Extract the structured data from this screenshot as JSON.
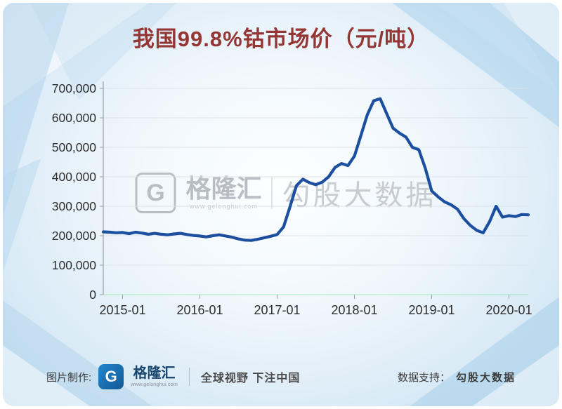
{
  "title": "我国99.8%钴市场价（元/吨）",
  "colors": {
    "line": "#1c4f9f",
    "title": "#943634",
    "background_panel": "#d9eaf6"
  },
  "watermark": {
    "logo_letter": "G",
    "brand": "格隆汇",
    "brand_url": "www.gelonghui.com",
    "right_text": "勾股大数据"
  },
  "footer": {
    "left_label": "图片制作:",
    "logo_letter": "G",
    "brand": "格隆汇",
    "brand_url": "www.gelonghui.com",
    "slogan": "全球视野 下注中国",
    "right_label": "数据支持：",
    "right_value": "勾股大数据"
  },
  "chart_data": {
    "type": "line",
    "title": "我国99.8%钴市场价（元/吨）",
    "xlabel": "",
    "ylabel": "元/吨",
    "ylim": [
      0,
      700000
    ],
    "grid": "horizontal",
    "legend_position": "none",
    "x_unit": "months, offset relative to 2015-01",
    "x_ticks": [
      {
        "label": "2015-01",
        "m": 0
      },
      {
        "label": "2016-01",
        "m": 12
      },
      {
        "label": "2017-01",
        "m": 24
      },
      {
        "label": "2018-01",
        "m": 36
      },
      {
        "label": "2019-01",
        "m": 48
      },
      {
        "label": "2020-01",
        "m": 60
      }
    ],
    "y_ticks": [
      {
        "label": "0",
        "v": 0
      },
      {
        "label": "100,000",
        "v": 100000
      },
      {
        "label": "200,000",
        "v": 200000
      },
      {
        "label": "300,000",
        "v": 300000
      },
      {
        "label": "400,000",
        "v": 400000
      },
      {
        "label": "500,000",
        "v": 500000
      },
      {
        "label": "600,000",
        "v": 600000
      },
      {
        "label": "700,000",
        "v": 700000
      }
    ],
    "series": [
      {
        "name": "99.8%钴市场价",
        "color": "#1c4f9f",
        "start_month_offset": -3,
        "values": [
          213000,
          212000,
          210000,
          211000,
          207000,
          212000,
          209000,
          205000,
          208000,
          205000,
          203000,
          206000,
          208000,
          204000,
          201000,
          199000,
          196000,
          200000,
          203000,
          199000,
          195000,
          189000,
          185000,
          184000,
          188000,
          193000,
          198000,
          204000,
          230000,
          298000,
          370000,
          392000,
          380000,
          373000,
          382000,
          400000,
          432000,
          445000,
          438000,
          470000,
          540000,
          610000,
          658000,
          665000,
          615000,
          565000,
          548000,
          535000,
          500000,
          492000,
          430000,
          352000,
          332000,
          315000,
          305000,
          290000,
          258000,
          235000,
          218000,
          210000,
          248000,
          300000,
          263000,
          268000,
          265000,
          272000,
          271000
        ]
      }
    ]
  }
}
